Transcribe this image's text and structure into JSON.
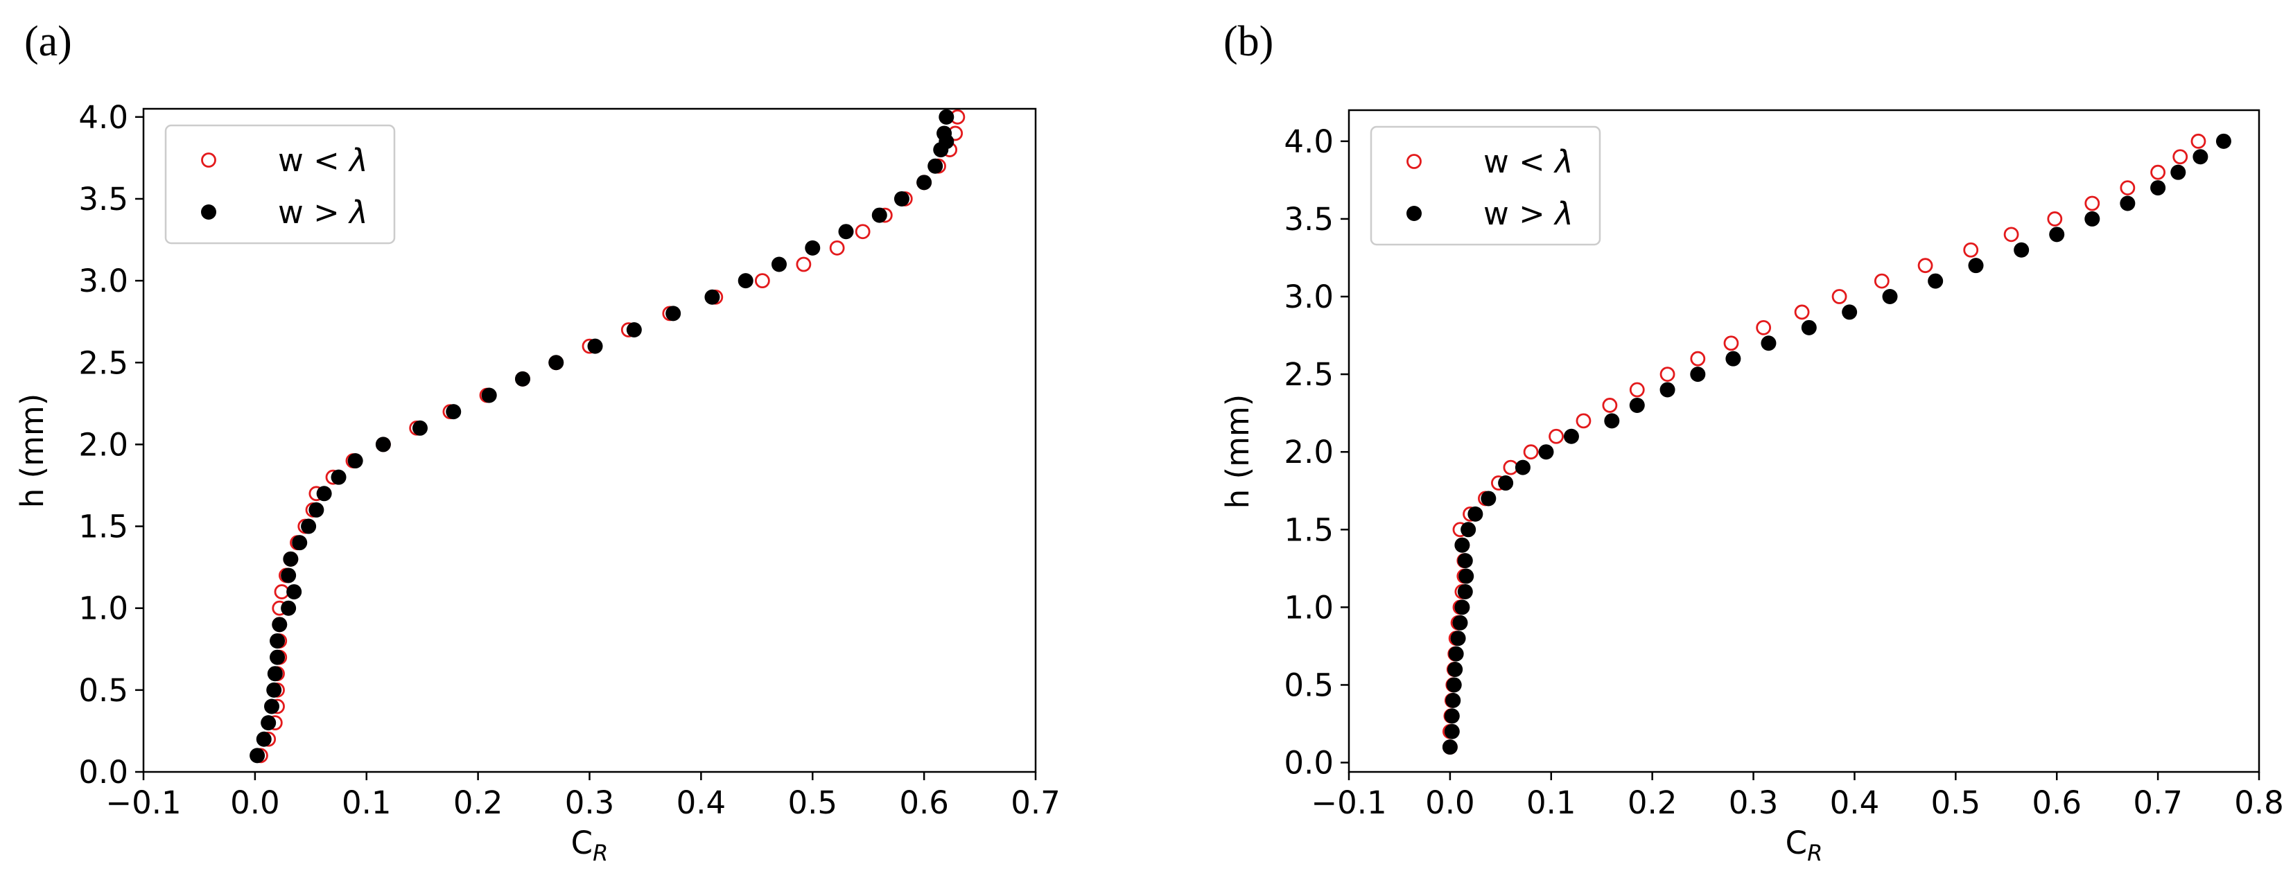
{
  "colors": {
    "open_marker": "#e31a1c",
    "filled_marker": "#000000",
    "axis": "#000000",
    "legend_border": "#cccccc"
  },
  "chart_data": [
    {
      "panel_label": "(a)",
      "type": "scatter",
      "xlabel": "C",
      "xlabel_sub": "R",
      "ylabel": "h (mm)",
      "xlim": [
        -0.1,
        0.7
      ],
      "ylim": [
        0.0,
        4.05
      ],
      "xticks": [
        -0.1,
        0.0,
        0.1,
        0.2,
        0.3,
        0.4,
        0.5,
        0.6,
        0.7
      ],
      "xtick_labels": [
        "−0.1",
        "0.0",
        "0.1",
        "0.2",
        "0.3",
        "0.4",
        "0.5",
        "0.6",
        "0.7"
      ],
      "yticks": [
        0.0,
        0.5,
        1.0,
        1.5,
        2.0,
        2.5,
        3.0,
        3.5,
        4.0
      ],
      "ytick_labels": [
        "0.0",
        "0.5",
        "1.0",
        "1.5",
        "2.0",
        "2.5",
        "3.0",
        "3.5",
        "4.0"
      ],
      "legend_position": "top-left",
      "series": [
        {
          "name": "w < λ",
          "legend_prefix": "w < ",
          "legend_symbol": "λ",
          "marker": "open",
          "x": [
            0.005,
            0.012,
            0.018,
            0.02,
            0.02,
            0.02,
            0.022,
            0.022,
            0.022,
            0.022,
            0.024,
            0.028,
            0.032,
            0.038,
            0.045,
            0.052,
            0.055,
            0.07,
            0.088,
            0.115,
            0.145,
            0.175,
            0.208,
            0.24,
            0.27,
            0.3,
            0.335,
            0.372,
            0.413,
            0.455,
            0.492,
            0.522,
            0.545,
            0.565,
            0.583,
            0.6,
            0.613,
            0.623,
            0.628,
            0.63
          ],
          "y": [
            0.1,
            0.2,
            0.3,
            0.4,
            0.5,
            0.6,
            0.7,
            0.8,
            0.9,
            1.0,
            1.1,
            1.2,
            1.3,
            1.4,
            1.5,
            1.6,
            1.7,
            1.8,
            1.9,
            2.0,
            2.1,
            2.2,
            2.3,
            2.4,
            2.5,
            2.6,
            2.7,
            2.8,
            2.9,
            3.0,
            3.1,
            3.2,
            3.3,
            3.4,
            3.5,
            3.6,
            3.7,
            3.8,
            3.9,
            4.0
          ]
        },
        {
          "name": "w > λ",
          "legend_prefix": "w > ",
          "legend_symbol": "λ",
          "marker": "filled",
          "x": [
            0.002,
            0.008,
            0.012,
            0.015,
            0.017,
            0.018,
            0.02,
            0.02,
            0.022,
            0.03,
            0.035,
            0.03,
            0.032,
            0.04,
            0.048,
            0.055,
            0.062,
            0.075,
            0.09,
            0.115,
            0.148,
            0.178,
            0.21,
            0.24,
            0.27,
            0.305,
            0.34,
            0.375,
            0.41,
            0.44,
            0.47,
            0.5,
            0.53,
            0.56,
            0.58,
            0.6,
            0.61,
            0.615,
            0.618,
            0.62,
            0.62
          ],
          "y": [
            0.1,
            0.2,
            0.3,
            0.4,
            0.5,
            0.6,
            0.7,
            0.8,
            0.9,
            1.0,
            1.1,
            1.2,
            1.3,
            1.4,
            1.5,
            1.6,
            1.7,
            1.8,
            1.9,
            2.0,
            2.1,
            2.2,
            2.3,
            2.4,
            2.5,
            2.6,
            2.7,
            2.8,
            2.9,
            3.0,
            3.1,
            3.2,
            3.3,
            3.4,
            3.5,
            3.6,
            3.7,
            3.8,
            3.9,
            4.0,
            3.85
          ]
        }
      ]
    },
    {
      "panel_label": "(b)",
      "type": "scatter",
      "xlabel": "C",
      "xlabel_sub": "R",
      "ylabel": "h (mm)",
      "xlim": [
        -0.1,
        0.8
      ],
      "ylim": [
        -0.06,
        4.2
      ],
      "xticks": [
        -0.1,
        0.0,
        0.1,
        0.2,
        0.3,
        0.4,
        0.5,
        0.6,
        0.7,
        0.8
      ],
      "xtick_labels": [
        "−0.1",
        "0.0",
        "0.1",
        "0.2",
        "0.3",
        "0.4",
        "0.5",
        "0.6",
        "0.7",
        "0.8"
      ],
      "yticks": [
        0.0,
        0.5,
        1.0,
        1.5,
        2.0,
        2.5,
        3.0,
        3.5,
        4.0
      ],
      "ytick_labels": [
        "0.0",
        "0.5",
        "1.0",
        "1.5",
        "2.0",
        "2.5",
        "3.0",
        "3.5",
        "4.0"
      ],
      "legend_position": "top-left",
      "series": [
        {
          "name": "w < λ",
          "legend_prefix": "w < ",
          "legend_symbol": "λ",
          "marker": "open",
          "x": [
            0.0,
            0.0,
            0.001,
            0.002,
            0.003,
            0.004,
            0.005,
            0.006,
            0.008,
            0.01,
            0.012,
            0.014,
            0.014,
            0.012,
            0.01,
            0.02,
            0.035,
            0.048,
            0.06,
            0.08,
            0.105,
            0.132,
            0.158,
            0.185,
            0.215,
            0.245,
            0.278,
            0.31,
            0.348,
            0.385,
            0.427,
            0.47,
            0.515,
            0.555,
            0.598,
            0.635,
            0.67,
            0.7,
            0.722,
            0.74
          ],
          "y": [
            0.1,
            0.2,
            0.3,
            0.4,
            0.5,
            0.6,
            0.7,
            0.8,
            0.9,
            1.0,
            1.1,
            1.2,
            1.3,
            1.4,
            1.5,
            1.6,
            1.7,
            1.8,
            1.9,
            2.0,
            2.1,
            2.2,
            2.3,
            2.4,
            2.5,
            2.6,
            2.7,
            2.8,
            2.9,
            3.0,
            3.1,
            3.2,
            3.3,
            3.4,
            3.5,
            3.6,
            3.7,
            3.8,
            3.9,
            4.0
          ]
        },
        {
          "name": "w > λ",
          "legend_prefix": "w > ",
          "legend_symbol": "λ",
          "marker": "filled",
          "x": [
            0.0,
            0.002,
            0.002,
            0.003,
            0.004,
            0.005,
            0.006,
            0.008,
            0.01,
            0.012,
            0.015,
            0.016,
            0.015,
            0.012,
            0.018,
            0.025,
            0.038,
            0.055,
            0.072,
            0.095,
            0.12,
            0.16,
            0.185,
            0.215,
            0.245,
            0.28,
            0.315,
            0.355,
            0.395,
            0.435,
            0.48,
            0.52,
            0.565,
            0.6,
            0.635,
            0.67,
            0.7,
            0.72,
            0.742,
            0.765
          ],
          "y": [
            0.1,
            0.2,
            0.3,
            0.4,
            0.5,
            0.6,
            0.7,
            0.8,
            0.9,
            1.0,
            1.1,
            1.2,
            1.3,
            1.4,
            1.5,
            1.6,
            1.7,
            1.8,
            1.9,
            2.0,
            2.1,
            2.2,
            2.3,
            2.4,
            2.5,
            2.6,
            2.7,
            2.8,
            2.9,
            3.0,
            3.1,
            3.2,
            3.3,
            3.4,
            3.5,
            3.6,
            3.7,
            3.8,
            3.9,
            4.0
          ]
        }
      ]
    }
  ]
}
